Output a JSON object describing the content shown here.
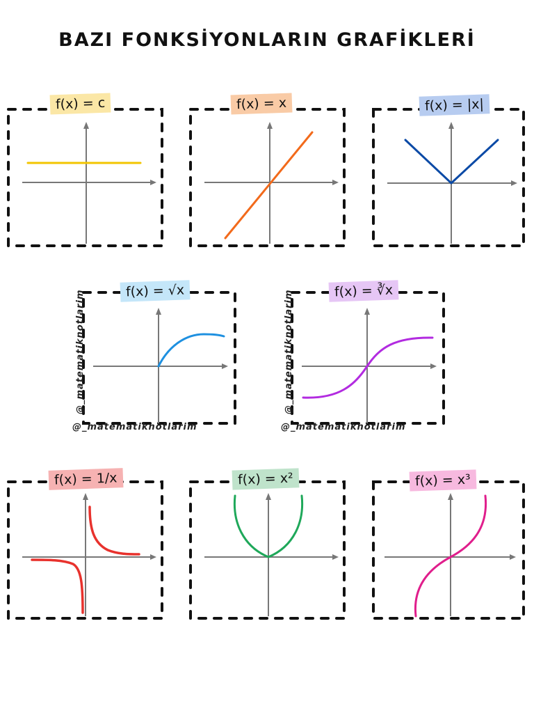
{
  "title": "BAZI FONKSİYONLARIN GRAFİKLERİ",
  "panels": [
    {
      "label": "f(x) = c",
      "color": "#f2c500",
      "label_bg": "#fbe7a6",
      "curve": "constant"
    },
    {
      "label": "f(x) = x",
      "color": "#f26a1b",
      "label_bg": "#f9cba6",
      "curve": "identity"
    },
    {
      "label": "f(x) = |x|",
      "color": "#0b4aa6",
      "label_bg": "#b7ccf0",
      "curve": "absolute"
    },
    {
      "label": "f(x) = √x",
      "color": "#1e90e0",
      "label_bg": "#c4e6f9",
      "curve": "sqrt"
    },
    {
      "label": "f(x) = ∛x",
      "color": "#b22be0",
      "label_bg": "#e6c6f5",
      "curve": "cbrt"
    },
    {
      "label": "f(x) = 1/x",
      "color": "#e8322d",
      "label_bg": "#f6b2b2",
      "curve": "reciprocal"
    },
    {
      "label": "f(x) = x²",
      "color": "#1fa85a",
      "label_bg": "#bfe3cb",
      "curve": "square"
    },
    {
      "label": "f(x) = x³",
      "color": "#e01e8c",
      "label_bg": "#f7b9df",
      "curve": "cube"
    }
  ],
  "watermark": "@_matematiknotlarim"
}
